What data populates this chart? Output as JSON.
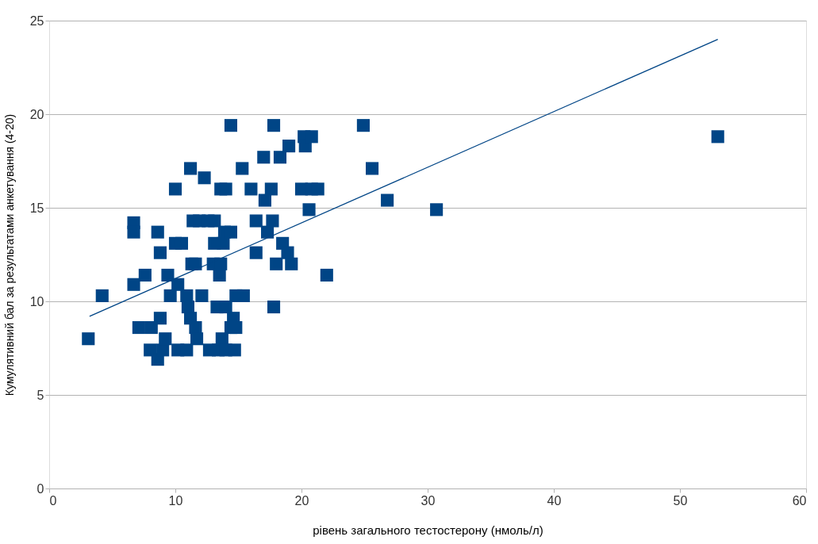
{
  "chart_data": {
    "type": "scatter",
    "xlabel": "рівень загального тестостерону (нмоль/л)",
    "ylabel": "Кумулятивний бал за результатами анкетування (4-20)",
    "xlim": [
      0,
      60
    ],
    "ylim": [
      0,
      25
    ],
    "xticks": [
      0,
      10,
      20,
      30,
      40,
      50,
      60
    ],
    "yticks": [
      0,
      5,
      10,
      15,
      20,
      25
    ],
    "grid": "y",
    "legend": false,
    "series": [
      {
        "type": "scatter",
        "color": "#004586",
        "marker": "square",
        "x": [
          3.1,
          4.2,
          6.7,
          6.7,
          6.7,
          7.1,
          7.6,
          8.0,
          8.1,
          8.6,
          8.8,
          8.8,
          8.6,
          9.0,
          9.2,
          9.4,
          9.6,
          10.0,
          10.0,
          10.2,
          10.5,
          10.2,
          10.9,
          11.2,
          10.9,
          11.0,
          11.2,
          11.3,
          11.4,
          11.6,
          11.6,
          11.7,
          11.9,
          12.1,
          12.3,
          12.6,
          12.7,
          13.0,
          13.1,
          13.1,
          13.3,
          13.4,
          13.5,
          13.6,
          13.6,
          13.7,
          13.8,
          13.9,
          14.0,
          14.0,
          14.0,
          14.4,
          14.4,
          14.4,
          14.6,
          14.7,
          14.8,
          14.8,
          15.3,
          15.4,
          16.0,
          16.4,
          16.4,
          17.0,
          17.1,
          17.3,
          17.6,
          17.7,
          17.8,
          17.8,
          18.0,
          18.3,
          18.5,
          18.9,
          19.0,
          19.2,
          20.2,
          20.3,
          20.0,
          20.6,
          20.8,
          20.8,
          21.3,
          22.0,
          24.9,
          25.6,
          26.8,
          30.7,
          53.0
        ],
        "values": [
          8.0,
          10.3,
          14.2,
          13.7,
          10.9,
          8.6,
          11.4,
          7.4,
          8.6,
          13.7,
          12.6,
          9.1,
          6.9,
          7.4,
          8.0,
          11.4,
          10.3,
          16.0,
          13.1,
          10.9,
          13.1,
          7.4,
          7.4,
          17.1,
          10.3,
          9.7,
          9.1,
          12.0,
          14.3,
          12.0,
          8.6,
          8.0,
          14.3,
          10.3,
          16.6,
          14.3,
          7.4,
          12.0,
          13.1,
          14.3,
          9.7,
          7.4,
          11.4,
          12.0,
          16.0,
          8.0,
          13.1,
          13.7,
          9.7,
          16.0,
          7.4,
          19.4,
          13.7,
          8.6,
          9.1,
          7.4,
          8.6,
          10.3,
          17.1,
          10.3,
          16.0,
          14.3,
          12.6,
          17.7,
          15.4,
          13.7,
          16.0,
          14.3,
          19.4,
          9.7,
          12.0,
          17.7,
          13.1,
          12.6,
          18.3,
          12.0,
          18.8,
          18.3,
          16.0,
          14.9,
          18.8,
          16.0,
          16.0,
          11.4,
          19.4,
          17.1,
          15.4,
          14.9,
          18.8
        ]
      },
      {
        "type": "line",
        "color": "#004586",
        "marker": "none",
        "line_style": "solid",
        "x": [
          3.2,
          53.0
        ],
        "values": [
          9.2,
          24.0
        ]
      }
    ]
  }
}
